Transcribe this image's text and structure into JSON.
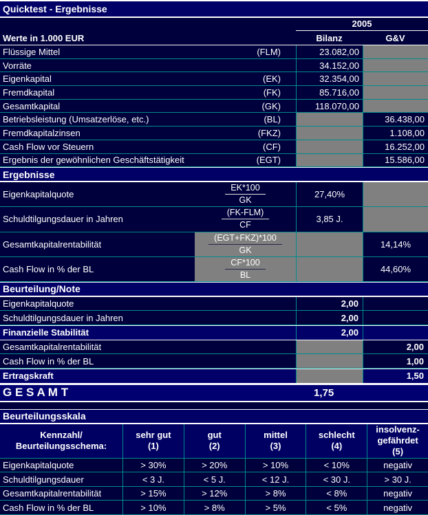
{
  "title": "Quicktest - Ergebnisse",
  "colors": {
    "background_navy": "#00003c",
    "bar_navy": "#000066",
    "blocked_grey": "#808080",
    "grid_teal": "#008b8b",
    "text_white": "#ffffff"
  },
  "header": {
    "year": "2005",
    "unit_label": "Werte in 1.000 EUR",
    "col_bilanz": "Bilanz",
    "col_gv": "G&V"
  },
  "inputs": [
    {
      "label": "Flüssige Mittel",
      "code": "(FLM)",
      "bilanz": "23.082,00",
      "gv": ""
    },
    {
      "label": "Vorräte",
      "code": "",
      "bilanz": "34.152,00",
      "gv": ""
    },
    {
      "label": "Eigenkapital",
      "code": "(EK)",
      "bilanz": "32.354,00",
      "gv": ""
    },
    {
      "label": "Fremdkapital",
      "code": "(FK)",
      "bilanz": "85.716,00",
      "gv": ""
    },
    {
      "label": "Gesamtkapital",
      "code": "(GK)",
      "bilanz": "118.070,00",
      "gv": ""
    },
    {
      "label": "Betriebsleistung (Umsatzerlöse, etc.)",
      "code": "(BL)",
      "bilanz": "",
      "gv": "36.438,00"
    },
    {
      "label": "Fremdkapitalzinsen",
      "code": "(FKZ)",
      "bilanz": "",
      "gv": "1.108,00"
    },
    {
      "label": "Cash Flow vor Steuern",
      "code": "(CF)",
      "bilanz": "",
      "gv": "16.252,00"
    },
    {
      "label": "Ergebnis der gewöhnlichen Geschäftstätigkeit",
      "code": "(EGT)",
      "bilanz": "",
      "gv": "15.586,00"
    }
  ],
  "sections": {
    "ergebnisse": "Ergebnisse",
    "beurteilung": "Beurteilung/Note",
    "skala": "Beurteilungsskala"
  },
  "ratios": [
    {
      "label": "Eigenkapitalquote",
      "numerator": "EK*100",
      "denominator": "GK",
      "bilanz": "27,40%",
      "gv": ""
    },
    {
      "label": "Schuldtilgungsdauer in Jahren",
      "numerator": "(FK-FLM)",
      "denominator": "CF",
      "bilanz": "3,85 J.",
      "gv": ""
    },
    {
      "label": "Gesamtkapitalrentabilität",
      "numerator": "(EGT+FKZ)*100",
      "denominator": "GK",
      "bilanz": "",
      "gv": "14,14%"
    },
    {
      "label": "Cash Flow in % der BL",
      "numerator": "CF*100",
      "denominator": "BL",
      "bilanz": "",
      "gv": "44,60%"
    }
  ],
  "notes": [
    {
      "label": "Eigenkapitalquote",
      "bilanz": "2,00",
      "gv": ""
    },
    {
      "label": "Schuldtilgungsdauer in Jahren",
      "bilanz": "2,00",
      "gv": ""
    },
    {
      "label": "Finanzielle Stabilität",
      "bilanz": "2,00",
      "gv": ""
    },
    {
      "label": "Gesamtkapitalrentabilität",
      "bilanz": "",
      "gv": "2,00"
    },
    {
      "label": "Cash Flow in % der BL",
      "bilanz": "",
      "gv": "1,00"
    },
    {
      "label": "Ertragskraft",
      "bilanz": "",
      "gv": "1,50"
    }
  ],
  "gesamt": {
    "label": "G E S A M T",
    "value": "1,75"
  },
  "skala": {
    "header": {
      "cols": [
        {
          "lines": [
            "Kennzahl/",
            "Beurteilungsschema:"
          ]
        },
        {
          "lines": [
            "sehr gut",
            "(1)"
          ]
        },
        {
          "lines": [
            "gut",
            "(2)"
          ]
        },
        {
          "lines": [
            "mittel",
            "(3)"
          ]
        },
        {
          "lines": [
            "schlecht",
            "(4)"
          ]
        },
        {
          "lines": [
            "insolvenz-",
            "gefährdet",
            "(5)"
          ]
        }
      ]
    },
    "rows": [
      {
        "label": "Eigenkapitalquote",
        "values": [
          "> 30%",
          "> 20%",
          "> 10%",
          "< 10%",
          "negativ"
        ]
      },
      {
        "label": "Schuldtilgungsdauer",
        "values": [
          "< 3 J.",
          "< 5 J.",
          "< 12 J.",
          "< 30 J.",
          "> 30 J."
        ]
      },
      {
        "label": "Gesamtkapitalrentabilität",
        "values": [
          "> 15%",
          "> 12%",
          "> 8%",
          "< 8%",
          "negativ"
        ]
      },
      {
        "label": "Cash Flow in % der BL",
        "values": [
          "> 10%",
          "> 8%",
          "> 5%",
          "< 5%",
          "negativ"
        ]
      }
    ]
  }
}
